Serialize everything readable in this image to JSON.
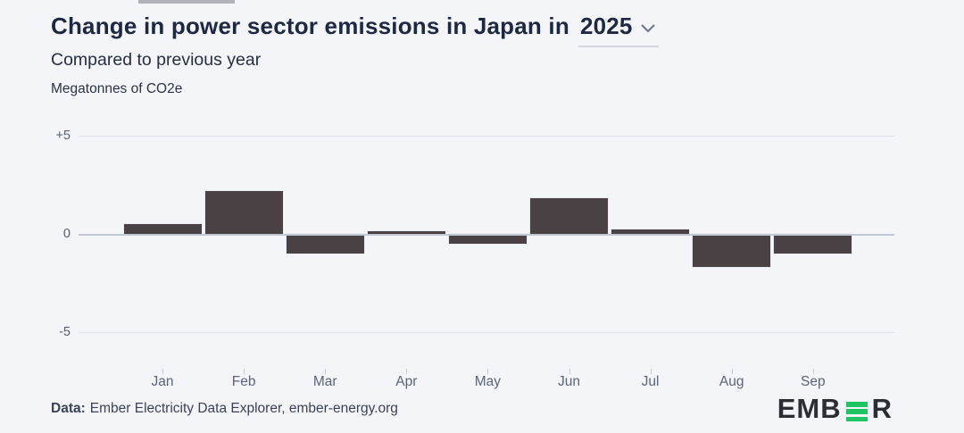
{
  "page": {
    "background": "#f4f5f9"
  },
  "header": {
    "title_prefix": "Change in power sector emissions in Japan in",
    "year_selector": {
      "value": "2025"
    },
    "subtitle": "Compared to previous year",
    "units": "Megatonnes of CO2e"
  },
  "chart_data": {
    "type": "bar",
    "title": "Change in power sector emissions in Japan in 2025",
    "subtitle": "Compared to previous year",
    "ylabel": "Megatonnes of CO2e",
    "categories": [
      "Jan",
      "Feb",
      "Mar",
      "Apr",
      "May",
      "Jun",
      "Jul",
      "Aug",
      "Sep"
    ],
    "values": [
      0.5,
      2.2,
      -1.0,
      0.15,
      -0.5,
      1.8,
      0.25,
      -1.7,
      -1.0
    ],
    "ylim": [
      -5,
      5
    ],
    "y_ticks": [
      {
        "label": "+5",
        "value": 5
      },
      {
        "label": "0",
        "value": 0
      },
      {
        "label": "-5",
        "value": -5
      }
    ],
    "grid": true,
    "legend": "none",
    "bar_color": "#4a4145"
  },
  "footer": {
    "source_label": "Data:",
    "source_text": "Ember Electricity Data Explorer, ember-energy.org"
  },
  "logo": {
    "text_left": "EMB",
    "text_right": "R",
    "green": "#1fc463",
    "dark": "#2b2e33"
  },
  "icons": {
    "chevron_down": "chevron-down-icon"
  }
}
